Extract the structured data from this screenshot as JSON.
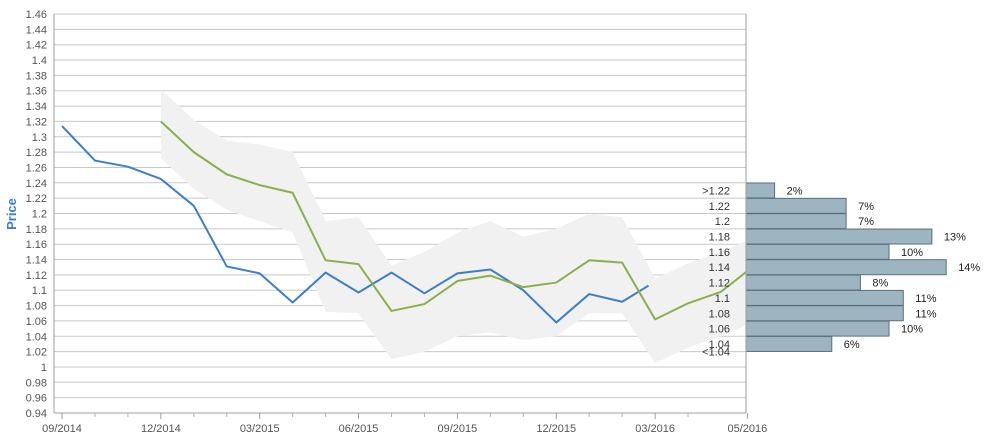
{
  "chart_data": {
    "type": "line",
    "ylabel": "Price",
    "ylim": [
      0.94,
      1.46
    ],
    "grid": true,
    "y_ticks": [
      "0.94",
      "0.96",
      "0.98",
      "1",
      "1.02",
      "1.04",
      "1.06",
      "1.08",
      "1.1",
      "1.12",
      "1.14",
      "1.16",
      "1.18",
      "1.2",
      "1.22",
      "1.24",
      "1.26",
      "1.28",
      "1.3",
      "1.32",
      "1.34",
      "1.36",
      "1.38",
      "1.4",
      "1.42",
      "1.44",
      "1.46"
    ],
    "x_ticks": [
      {
        "label": "09/2014",
        "month": 0
      },
      {
        "label": "12/2014",
        "month": 3
      },
      {
        "label": "03/2015",
        "month": 6
      },
      {
        "label": "06/2015",
        "month": 9
      },
      {
        "label": "09/2015",
        "month": 12
      },
      {
        "label": "12/2015",
        "month": 15
      },
      {
        "label": "03/2016",
        "month": 18
      },
      {
        "label": "05/2016",
        "month": 20.8
      }
    ],
    "x_minor_months": [
      1,
      2,
      4,
      5,
      7,
      8,
      10,
      11,
      13,
      14,
      16,
      17,
      19
    ],
    "series": [
      {
        "color": "#3a7fcb",
        "points": [
          [
            0,
            1.314
          ],
          [
            1,
            1.269
          ],
          [
            2,
            1.261
          ],
          [
            3,
            1.245
          ],
          [
            4,
            1.21
          ],
          [
            5,
            1.131
          ],
          [
            6,
            1.122
          ],
          [
            7,
            1.084
          ],
          [
            8,
            1.123
          ],
          [
            9,
            1.097
          ],
          [
            10,
            1.123
          ],
          [
            11,
            1.096
          ],
          [
            12,
            1.122
          ],
          [
            13,
            1.127
          ],
          [
            14,
            1.1
          ],
          [
            15,
            1.058
          ],
          [
            16,
            1.095
          ],
          [
            17,
            1.085
          ],
          [
            17.8,
            1.106
          ]
        ]
      },
      {
        "color": "#8aaf4c",
        "points": [
          [
            3,
            1.32
          ],
          [
            4,
            1.28
          ],
          [
            5,
            1.251
          ],
          [
            6,
            1.237
          ],
          [
            7,
            1.227
          ],
          [
            8,
            1.139
          ],
          [
            9,
            1.134
          ],
          [
            10,
            1.073
          ],
          [
            11,
            1.082
          ],
          [
            12,
            1.112
          ],
          [
            13,
            1.119
          ],
          [
            14,
            1.104
          ],
          [
            15,
            1.11
          ],
          [
            16,
            1.139
          ],
          [
            17,
            1.136
          ],
          [
            18,
            1.062
          ],
          [
            19,
            1.083
          ],
          [
            20,
            1.098
          ],
          [
            20.8,
            1.125
          ]
        ]
      }
    ],
    "band": {
      "color": "#f1f1f1",
      "upper": [
        [
          3,
          1.362
        ],
        [
          4,
          1.322
        ],
        [
          5,
          1.295
        ],
        [
          6,
          1.29
        ],
        [
          7,
          1.28
        ],
        [
          8,
          1.19
        ],
        [
          9,
          1.195
        ],
        [
          10,
          1.132
        ],
        [
          11,
          1.15
        ],
        [
          12,
          1.175
        ],
        [
          13,
          1.19
        ],
        [
          14,
          1.17
        ],
        [
          15,
          1.18
        ],
        [
          16,
          1.2
        ],
        [
          17,
          1.195
        ],
        [
          18,
          1.115
        ],
        [
          19,
          1.135
        ],
        [
          20,
          1.15
        ],
        [
          20.8,
          1.165
        ]
      ],
      "lower": [
        [
          3,
          1.272
        ],
        [
          4,
          1.232
        ],
        [
          5,
          1.205
        ],
        [
          6,
          1.19
        ],
        [
          7,
          1.175
        ],
        [
          8,
          1.072
        ],
        [
          9,
          1.07
        ],
        [
          10,
          1.01
        ],
        [
          11,
          1.02
        ],
        [
          12,
          1.04
        ],
        [
          13,
          1.045
        ],
        [
          14,
          1.035
        ],
        [
          15,
          1.04
        ],
        [
          16,
          1.07
        ],
        [
          17,
          1.07
        ],
        [
          18,
          1.005
        ],
        [
          19,
          1.025
        ],
        [
          20,
          1.04
        ],
        [
          20.8,
          1.055
        ]
      ]
    },
    "distribution": {
      "color": "#9db5c0",
      "bins": [
        {
          "label": ">1.22",
          "value": 2,
          "text": "2%",
          "y": 1.23
        },
        {
          "label": "1.22",
          "value": 7,
          "text": "7%",
          "y": 1.21
        },
        {
          "label": "1.2",
          "value": 7,
          "text": "7%",
          "y": 1.19
        },
        {
          "label": "1.18",
          "value": 13,
          "text": "13%",
          "y": 1.17
        },
        {
          "label": "1.16",
          "value": 10,
          "text": "10%",
          "y": 1.15
        },
        {
          "label": "1.14",
          "value": 14,
          "text": "14%",
          "y": 1.13
        },
        {
          "label": "1.12",
          "value": 8,
          "text": "8%",
          "y": 1.11
        },
        {
          "label": "1.1",
          "value": 11,
          "text": "11%",
          "y": 1.09
        },
        {
          "label": "1.08",
          "value": 11,
          "text": "11%",
          "y": 1.07
        },
        {
          "label": "1.06",
          "value": 10,
          "text": "10%",
          "y": 1.05
        },
        {
          "label": "1.04",
          "value": 6,
          "text": "6%",
          "y": 1.03
        },
        {
          "label": "<1.04",
          "value": null,
          "text": "",
          "y": 1.02
        }
      ]
    }
  }
}
